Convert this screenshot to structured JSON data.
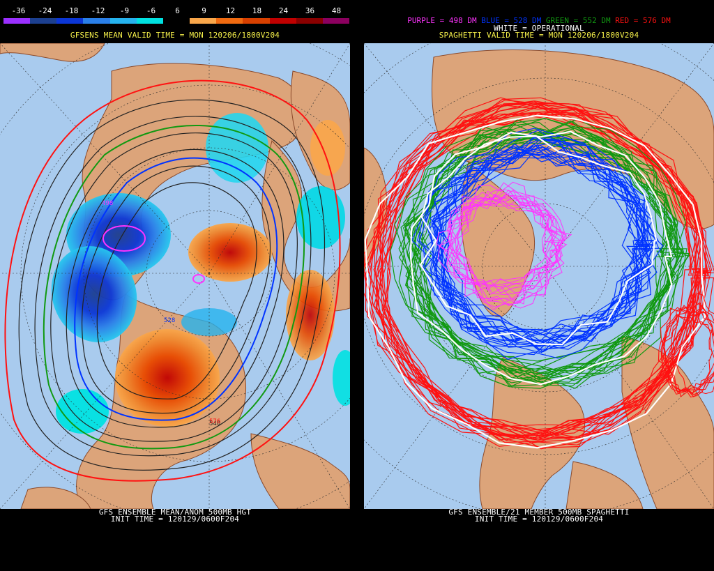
{
  "left": {
    "scale_labels": [
      "-36",
      "-24",
      "-18",
      "-12",
      "-9",
      "-6",
      "6",
      "9",
      "12",
      "18",
      "24",
      "36",
      "48"
    ],
    "scale_colors": [
      "#9b30ff",
      "#1c3f8f",
      "#0b36d6",
      "#2a7fe8",
      "#26b3ee",
      "#00e1e1",
      "#000000",
      "#f9a64a",
      "#f06a10",
      "#d84000",
      "#c00000",
      "#8a0000",
      "#8b005f"
    ],
    "valid_title": "GFSENS MEAN VALID TIME = MON 120206/1800V204",
    "footer_line1": "GFS ENSEMBLE MEAN/ANOM 500MB HGT",
    "footer_line2": "INIT TIME = 120129/0600F204",
    "contour_labels": [
      "498",
      "528",
      "540",
      "552",
      "576"
    ]
  },
  "right": {
    "legend": {
      "purple": "PURPLE = 498 DM",
      "blue": "BLUE = 528 DM",
      "green": "GREEN = 552 DM",
      "red": "RED = 576 DM",
      "white": "WHITE = OPERATIONAL"
    },
    "valid_title": "SPAGHETTI VALID TIME = MON 120206/1800V204",
    "footer_line1": "GFS ENSEMBLE/21 MEMBER 500MB SPAGHETTI",
    "footer_line2": "INIT TIME = 120129/0600F204"
  },
  "colors": {
    "ocean": "#a9cbee",
    "land": "#dca47a",
    "coast": "#8b4a2b",
    "grid": "#2c2c2c",
    "title_yellow": "#f5f04a",
    "purple": "#ff33ff",
    "blue": "#0033ff",
    "green": "#119911",
    "red": "#ff1111",
    "white": "#ffffff"
  }
}
